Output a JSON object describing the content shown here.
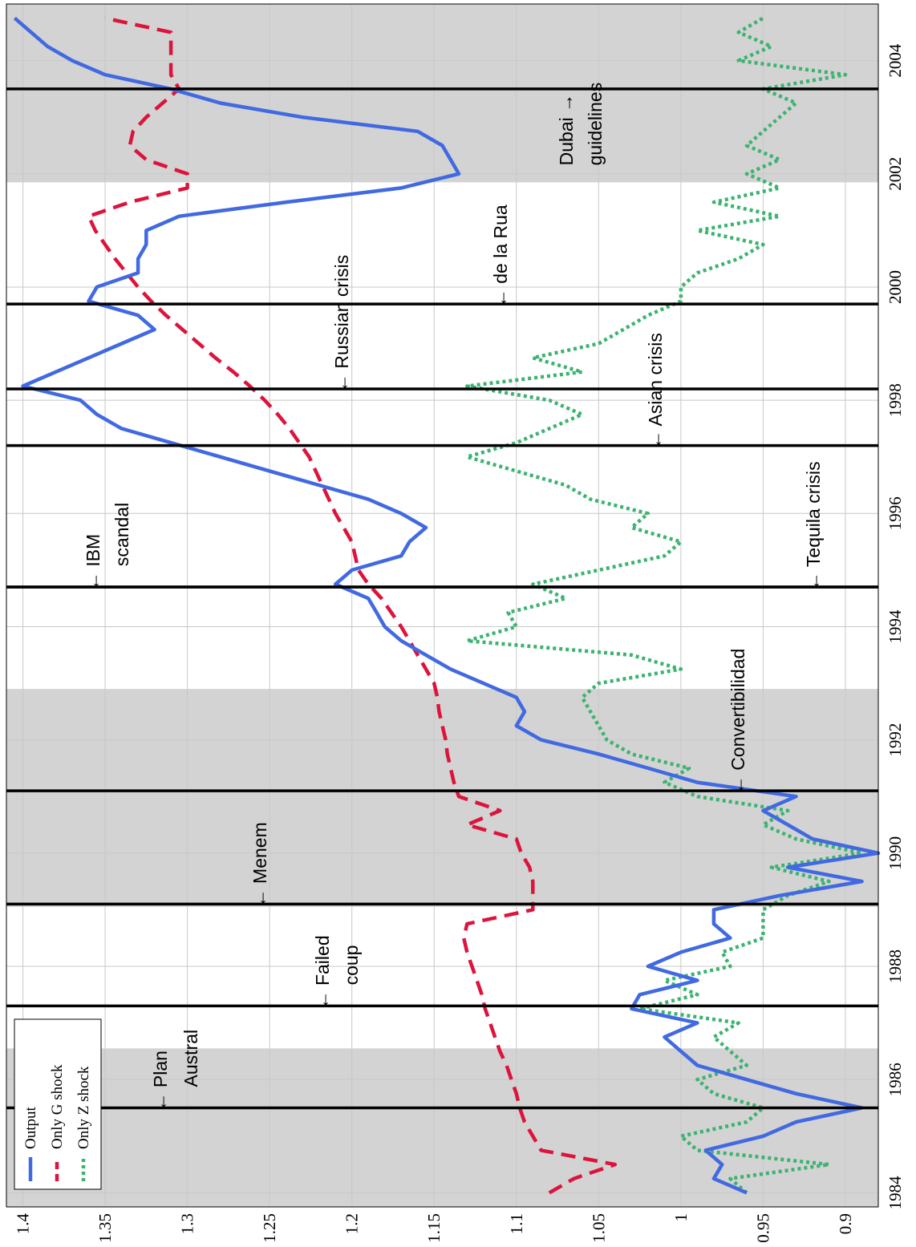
{
  "chart_data": {
    "type": "line",
    "xlim": [
      1983.75,
      2005
    ],
    "ylim": [
      0.88,
      1.41
    ],
    "xticks": [
      1984,
      1986,
      1988,
      1990,
      1992,
      1994,
      1996,
      1998,
      2000,
      2002,
      2004
    ],
    "yticks": [
      0.9,
      0.95,
      1,
      1.05,
      1.1,
      1.15,
      1.2,
      1.25,
      1.3,
      1.35,
      1.4
    ],
    "grid": true,
    "legend": "upper left",
    "shaded_periods": [
      [
        1983.75,
        1986.55
      ],
      [
        1989.05,
        1992.9
      ],
      [
        2001.85,
        2005
      ]
    ],
    "x": [
      1984,
      1984.25,
      1984.5,
      1984.75,
      1985,
      1985.25,
      1985.5,
      1985.75,
      1986,
      1986.25,
      1986.5,
      1986.75,
      1987,
      1987.25,
      1987.5,
      1987.75,
      1988,
      1988.25,
      1988.5,
      1988.75,
      1989,
      1989.25,
      1989.5,
      1989.75,
      1990,
      1990.25,
      1990.5,
      1990.75,
      1991,
      1991.25,
      1991.5,
      1991.75,
      1992,
      1992.25,
      1992.5,
      1992.75,
      1993,
      1993.25,
      1993.5,
      1993.75,
      1994,
      1994.25,
      1994.5,
      1994.75,
      1995,
      1995.25,
      1995.5,
      1995.75,
      1996,
      1996.25,
      1996.5,
      1996.75,
      1997,
      1997.25,
      1997.5,
      1997.75,
      1998,
      1998.25,
      1998.5,
      1998.75,
      1999,
      1999.25,
      1999.5,
      1999.75,
      2000,
      2000.25,
      2000.5,
      2000.75,
      2001,
      2001.25,
      2001.5,
      2001.75,
      2002,
      2002.25,
      2002.5,
      2002.75,
      2003,
      2003.25,
      2003.5,
      2003.75,
      2004,
      2004.25,
      2004.5,
      2004.75
    ],
    "series": [
      {
        "name": "Output",
        "color": "#4169e1",
        "style": "solid",
        "values": [
          0.96,
          0.98,
          0.975,
          0.985,
          0.95,
          0.93,
          0.89,
          0.93,
          0.96,
          0.99,
          1.0,
          1.01,
          0.99,
          1.03,
          1.025,
          0.99,
          1.02,
          1.0,
          0.97,
          0.98,
          0.98,
          0.94,
          0.89,
          0.935,
          0.88,
          0.92,
          0.935,
          0.95,
          0.93,
          0.99,
          1.02,
          1.05,
          1.085,
          1.1,
          1.095,
          1.1,
          1.12,
          1.14,
          1.155,
          1.17,
          1.18,
          1.185,
          1.19,
          1.21,
          1.2,
          1.17,
          1.165,
          1.155,
          1.17,
          1.19,
          1.22,
          1.25,
          1.28,
          1.31,
          1.34,
          1.355,
          1.365,
          1.4,
          1.38,
          1.36,
          1.34,
          1.32,
          1.33,
          1.36,
          1.355,
          1.33,
          1.33,
          1.325,
          1.325,
          1.305,
          1.24,
          1.17,
          1.135,
          1.14,
          1.145,
          1.16,
          1.23,
          1.28,
          1.31,
          1.35,
          1.37,
          1.385,
          1.395,
          1.405
        ]
      },
      {
        "name": "Only G shock",
        "color": "#dc143c",
        "style": "dashed",
        "values": [
          1.08,
          1.065,
          1.04,
          1.085,
          1.09,
          1.095,
          1.098,
          1.1,
          1.103,
          1.106,
          1.11,
          1.113,
          1.116,
          1.119,
          1.121,
          1.124,
          1.127,
          1.13,
          1.132,
          1.13,
          1.09,
          1.09,
          1.09,
          1.092,
          1.097,
          1.1,
          1.13,
          1.11,
          1.135,
          1.138,
          1.14,
          1.142,
          1.143,
          1.145,
          1.147,
          1.148,
          1.15,
          1.155,
          1.16,
          1.165,
          1.17,
          1.176,
          1.182,
          1.19,
          1.196,
          1.198,
          1.2,
          1.205,
          1.21,
          1.214,
          1.218,
          1.222,
          1.226,
          1.232,
          1.238,
          1.245,
          1.253,
          1.262,
          1.272,
          1.283,
          1.293,
          1.303,
          1.313,
          1.322,
          1.33,
          1.337,
          1.344,
          1.35,
          1.356,
          1.36,
          1.335,
          1.3,
          1.3,
          1.325,
          1.335,
          1.333,
          1.325,
          1.315,
          1.305,
          1.31,
          1.31,
          1.31,
          1.31,
          1.35
        ]
      },
      {
        "name": "Only Z shock",
        "color": "#3cb371",
        "style": "dotted",
        "values": [
          0.96,
          0.97,
          0.91,
          0.99,
          1.0,
          0.96,
          0.95,
          0.98,
          0.99,
          0.96,
          0.97,
          0.98,
          0.965,
          1.025,
          0.99,
          1.01,
          0.97,
          0.975,
          0.95,
          0.95,
          0.95,
          0.935,
          0.91,
          0.945,
          0.89,
          0.93,
          0.95,
          0.935,
          0.99,
          1.01,
          0.995,
          1.03,
          1.045,
          1.05,
          1.055,
          1.06,
          1.05,
          1.0,
          1.03,
          1.13,
          1.1,
          1.105,
          1.07,
          1.09,
          1.05,
          1.01,
          1.0,
          1.03,
          1.02,
          1.055,
          1.07,
          1.1,
          1.13,
          1.1,
          1.08,
          1.06,
          1.08,
          1.13,
          1.06,
          1.09,
          1.05,
          1.035,
          1.02,
          1.0,
          1.0,
          0.99,
          0.965,
          0.95,
          0.99,
          0.94,
          0.98,
          0.94,
          0.96,
          0.94,
          0.96,
          0.95,
          0.94,
          0.93,
          0.95,
          0.9,
          0.965,
          0.945,
          0.965,
          0.95
        ]
      }
    ],
    "events": [
      {
        "x": 1985.5,
        "label": [
          "← Plan",
          "Austral"
        ]
      },
      {
        "x": 1987.3,
        "label": [
          "← Failed",
          "coup"
        ]
      },
      {
        "x": 1989.1,
        "label": [
          "← Menem"
        ]
      },
      {
        "x": 1991.1,
        "label": [
          "← Convertibilidad"
        ]
      },
      {
        "x": 1994.7,
        "label": [
          "← Tequila crisis"
        ]
      },
      {
        "x": 1994.7,
        "label": [
          "← IBM",
          "scandal"
        ]
      },
      {
        "x": 1997.2,
        "label": [
          "← Asian crisis"
        ]
      },
      {
        "x": 1998.2,
        "label": [
          "← Russian crisis"
        ]
      },
      {
        "x": 1999.7,
        "label": [
          "← de la Rua"
        ]
      },
      {
        "x": 2003.5,
        "label": [
          "Dubai →",
          "guidelines"
        ]
      }
    ]
  }
}
